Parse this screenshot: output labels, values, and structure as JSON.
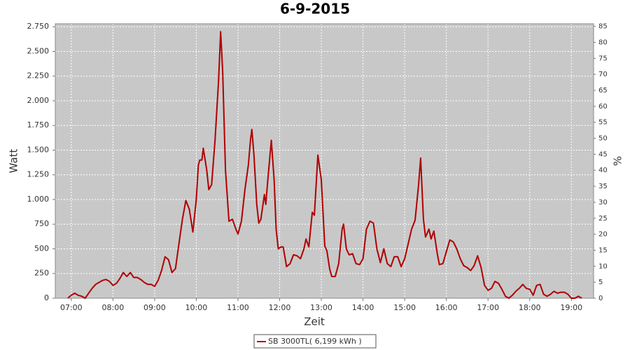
{
  "chart_data": {
    "type": "line",
    "title": "6-9-2015",
    "x_label": "Zeit",
    "y_label": "Watt",
    "y2_label": "%",
    "grid": true,
    "xlim": [
      "06:37",
      "19:32"
    ],
    "xticks": [
      "07:00",
      "08:00",
      "09:00",
      "10:00",
      "11:00",
      "12:00",
      "13:00",
      "14:00",
      "15:00",
      "16:00",
      "17:00",
      "18:00",
      "19:00"
    ],
    "ylim": [
      0,
      2780
    ],
    "yticks": [
      0,
      250,
      500,
      750,
      {
        "value": 1000,
        "label": "1.000"
      },
      {
        "value": 1250,
        "label": "1.250"
      },
      {
        "value": 1500,
        "label": "1.500"
      },
      {
        "value": 1750,
        "label": "1.750"
      },
      {
        "value": 2000,
        "label": "2.000"
      },
      {
        "value": 2250,
        "label": "2.250"
      },
      {
        "value": 2500,
        "label": "2.500"
      },
      {
        "value": 2750,
        "label": "2.750"
      }
    ],
    "y2lim": [
      0,
      85.8
    ],
    "y2ticks": [
      0,
      5,
      10,
      15,
      20,
      25,
      30,
      35,
      40,
      45,
      50,
      55,
      60,
      65,
      70,
      75,
      80,
      85
    ],
    "x": [
      "06:55",
      "07:00",
      "07:05",
      "07:10",
      "07:15",
      "07:20",
      "07:25",
      "07:30",
      "07:35",
      "07:40",
      "07:45",
      "07:50",
      "07:55",
      "08:00",
      "08:05",
      "08:10",
      "08:15",
      "08:20",
      "08:25",
      "08:30",
      "08:35",
      "08:40",
      "08:45",
      "08:50",
      "08:55",
      "09:00",
      "09:05",
      "09:10",
      "09:15",
      "09:20",
      "09:25",
      "09:30",
      "09:35",
      "09:40",
      "09:45",
      "09:50",
      "09:55",
      "10:00",
      "10:03",
      "10:05",
      "10:08",
      "10:10",
      "10:15",
      "10:18",
      "10:22",
      "10:27",
      "10:32",
      "10:35",
      "10:38",
      "10:42",
      "10:47",
      "10:52",
      "10:57",
      "11:00",
      "11:05",
      "11:10",
      "11:15",
      "11:18",
      "11:20",
      "11:23",
      "11:27",
      "11:30",
      "11:33",
      "11:38",
      "11:40",
      "11:43",
      "11:48",
      "11:52",
      "11:55",
      "11:58",
      "12:02",
      "12:05",
      "12:10",
      "12:15",
      "12:20",
      "12:25",
      "12:30",
      "12:35",
      "12:38",
      "12:42",
      "12:47",
      "12:50",
      "12:55",
      "13:00",
      "13:05",
      "13:08",
      "13:12",
      "13:15",
      "13:20",
      "13:25",
      "13:30",
      "13:32",
      "13:36",
      "13:40",
      "13:45",
      "13:50",
      "13:55",
      "14:00",
      "14:05",
      "14:10",
      "14:15",
      "14:20",
      "14:25",
      "14:30",
      "14:35",
      "14:40",
      "14:45",
      "14:50",
      "14:55",
      "15:00",
      "15:05",
      "15:10",
      "15:15",
      "15:20",
      "15:23",
      "15:27",
      "15:30",
      "15:35",
      "15:38",
      "15:42",
      "15:47",
      "15:50",
      "15:55",
      "16:00",
      "16:05",
      "16:10",
      "16:15",
      "16:20",
      "16:25",
      "16:30",
      "16:35",
      "16:40",
      "16:45",
      "16:50",
      "16:55",
      "17:00",
      "17:05",
      "17:10",
      "17:15",
      "17:20",
      "17:25",
      "17:30",
      "17:35",
      "17:40",
      "17:45",
      "17:50",
      "17:55",
      "18:00",
      "18:05",
      "18:10",
      "18:15",
      "18:20",
      "18:25",
      "18:30",
      "18:35",
      "18:40",
      "18:45",
      "18:50",
      "18:55",
      "19:00",
      "19:05",
      "19:10",
      "19:15"
    ],
    "series": [
      {
        "name": "SB 3000TL( 6,199 kWh )",
        "color": "#b00000",
        "values": [
          0,
          30,
          50,
          30,
          20,
          0,
          50,
          100,
          140,
          160,
          180,
          190,
          170,
          130,
          150,
          200,
          260,
          220,
          260,
          210,
          210,
          190,
          160,
          140,
          140,
          120,
          180,
          280,
          420,
          390,
          260,
          300,
          550,
          800,
          990,
          900,
          670,
          1000,
          1350,
          1400,
          1400,
          1520,
          1300,
          1100,
          1150,
          1600,
          2200,
          2700,
          2300,
          1300,
          780,
          800,
          700,
          650,
          780,
          1100,
          1350,
          1600,
          1710,
          1450,
          950,
          760,
          800,
          1050,
          950,
          1200,
          1600,
          1200,
          700,
          500,
          520,
          520,
          320,
          350,
          440,
          430,
          400,
          500,
          600,
          520,
          870,
          840,
          1450,
          1200,
          530,
          480,
          300,
          220,
          220,
          350,
          700,
          750,
          500,
          440,
          450,
          350,
          340,
          400,
          700,
          780,
          760,
          500,
          360,
          500,
          350,
          320,
          420,
          420,
          320,
          400,
          550,
          700,
          790,
          1150,
          1420,
          800,
          620,
          700,
          600,
          680,
          450,
          340,
          350,
          470,
          590,
          570,
          500,
          400,
          330,
          310,
          280,
          330,
          430,
          310,
          130,
          80,
          100,
          170,
          150,
          90,
          20,
          0,
          30,
          70,
          100,
          140,
          100,
          90,
          30,
          130,
          140,
          40,
          20,
          40,
          70,
          50,
          60,
          60,
          40,
          0,
          0,
          20,
          0
        ]
      }
    ]
  }
}
